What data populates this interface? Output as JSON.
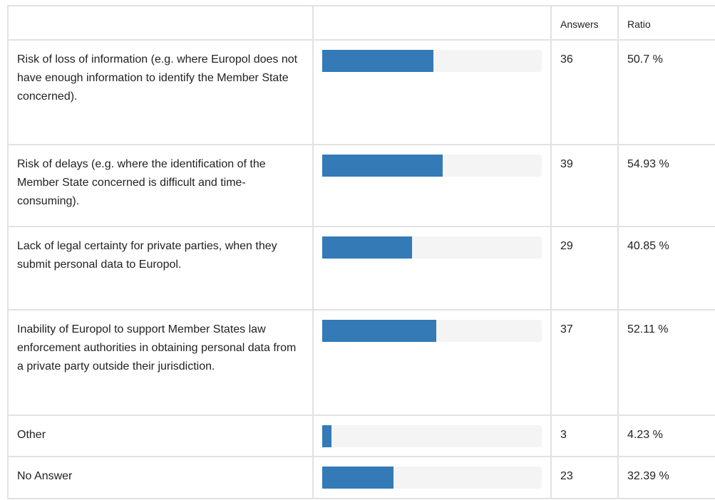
{
  "table": {
    "header": [
      "Answers",
      "Ratio"
    ],
    "rows": [
      {
        "label": "Risk of loss of information (e.g. where Europol does not have enough information to identify the Member State concerned).",
        "answers": 36,
        "ratio": 50.7,
        "ratio_label": "50.7 %"
      },
      {
        "label": "Risk of delays (e.g. where the identification of the Member State concerned is difficult and time-consuming).",
        "answers": 39,
        "ratio": 54.93,
        "ratio_label": "54.93 %"
      },
      {
        "label": "Lack of legal certainty for private parties, when they submit personal data to Europol.",
        "answers": 29,
        "ratio": 40.85,
        "ratio_label": "40.85 %"
      },
      {
        "label": "Inability of Europol to support Member States law enforcement authorities in obtaining personal data from a private party outside their jurisdiction.",
        "answers": 37,
        "ratio": 52.11,
        "ratio_label": "52.11 %"
      },
      {
        "label": "Other",
        "answers": 3,
        "ratio": 4.23,
        "ratio_label": "4.23 %"
      },
      {
        "label": "No Answer",
        "answers": 23,
        "ratio": 32.39,
        "ratio_label": "32.39 %"
      }
    ]
  }
}
